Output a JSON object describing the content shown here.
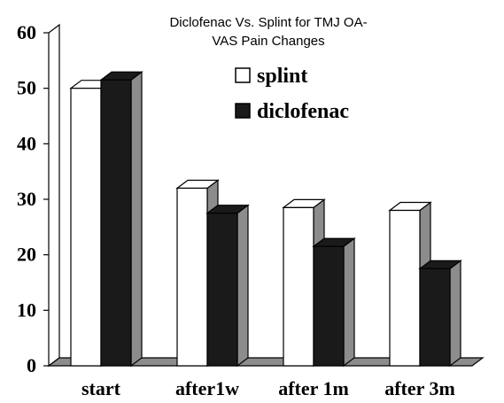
{
  "chart_data": {
    "type": "bar",
    "title": "Diclofenac Vs. Splint for TMJ OA-",
    "subtitle": "VAS Pain Changes",
    "categories": [
      "start",
      "after1w",
      "after 1m",
      "after 3m"
    ],
    "series": [
      {
        "name": "splint",
        "values": [
          50,
          32,
          28.5,
          28
        ],
        "color": "#ffffff"
      },
      {
        "name": "diclofenac",
        "values": [
          51.5,
          27.5,
          21.5,
          17.5
        ],
        "color": "#1a1a1a"
      }
    ],
    "yticks": [
      "0",
      "10",
      "20",
      "30",
      "40",
      "50",
      "60"
    ],
    "ylim": [
      0,
      60
    ],
    "three_d": true,
    "side_color": "#8c8c8c",
    "legend_position": "top-right",
    "grid": false
  }
}
